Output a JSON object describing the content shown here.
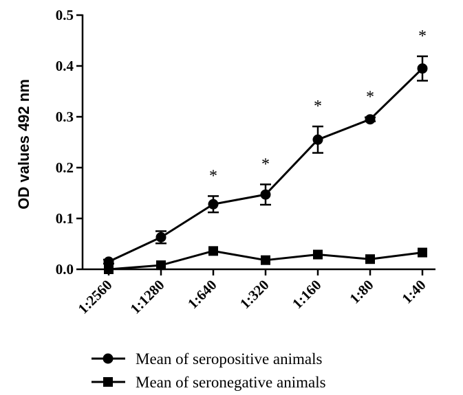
{
  "chart_data": {
    "type": "line",
    "title": "",
    "xlabel": "",
    "ylabel": "OD values 492 nm",
    "categories": [
      "1:2560",
      "1:1280",
      "1:640",
      "1:320",
      "1:160",
      "1:80",
      "1:40"
    ],
    "ylim": [
      0.0,
      0.5
    ],
    "yticks": [
      "0.0",
      "0.1",
      "0.2",
      "0.3",
      "0.4",
      "0.5"
    ],
    "grid": false,
    "legend_position": "bottom",
    "series": [
      {
        "name": "Mean of seropositive animals",
        "marker": "circle",
        "values": [
          0.015,
          0.063,
          0.128,
          0.147,
          0.255,
          0.295,
          0.395
        ],
        "errors": [
          0.004,
          0.012,
          0.016,
          0.02,
          0.026,
          0.004,
          0.024
        ]
      },
      {
        "name": "Mean of seronegative animals",
        "marker": "square",
        "values": [
          0.0,
          0.008,
          0.036,
          0.018,
          0.029,
          0.02,
          0.033
        ],
        "errors": [
          0,
          0,
          0,
          0,
          0,
          0,
          0
        ]
      }
    ],
    "annotations": {
      "significance_symbol": "*",
      "significant_categories": [
        "1:640",
        "1:320",
        "1:160",
        "1:80",
        "1:40"
      ]
    }
  }
}
